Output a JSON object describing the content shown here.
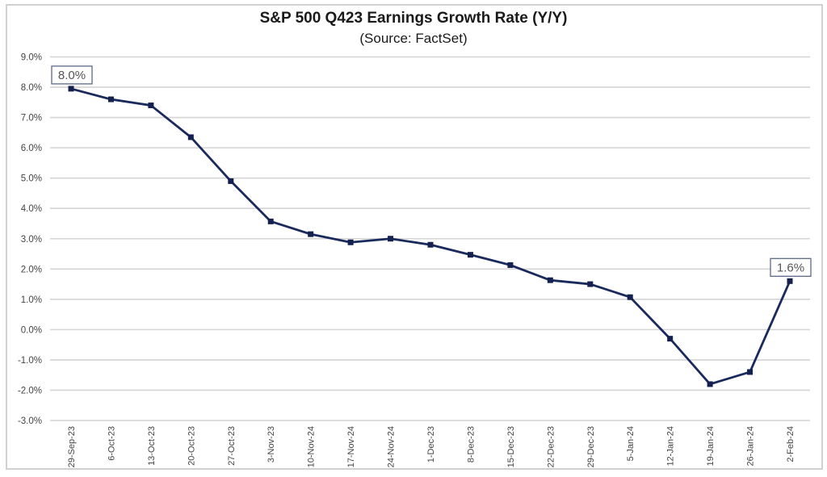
{
  "chart_data": {
    "type": "line",
    "title": "S&P 500 Q423 Earnings Growth Rate (Y/Y)",
    "subtitle": "(Source: FactSet)",
    "xlabel": "",
    "ylabel": "",
    "ylim": [
      -3.0,
      9.0
    ],
    "ytick_step": 1.0,
    "ytick_format": "percent_1dp",
    "grid": "horizontal",
    "legend": "none",
    "categories": [
      "29-Sep-23",
      "6-Oct-23",
      "13-Oct-23",
      "20-Oct-23",
      "27-Oct-23",
      "3-Nov-23",
      "10-Nov-24",
      "17-Nov-24",
      "24-Nov-24",
      "1-Dec-23",
      "8-Dec-23",
      "15-Dec-23",
      "22-Dec-23",
      "29-Dec-23",
      "5-Jan-24",
      "12-Jan-24",
      "19-Jan-24",
      "26-Jan-24",
      "2-Feb-24"
    ],
    "series": [
      {
        "name": "Earnings Growth Rate (Y/Y)",
        "color": "#1b2a5c",
        "values": [
          7.95,
          7.6,
          7.4,
          6.35,
          4.9,
          3.57,
          3.15,
          2.88,
          3.0,
          2.8,
          2.47,
          2.13,
          1.63,
          1.5,
          1.07,
          -0.3,
          -1.8,
          -1.4,
          1.6
        ]
      }
    ],
    "annotations": [
      {
        "category": "29-Sep-23",
        "text": "8.0%"
      },
      {
        "category": "2-Feb-24",
        "text": "1.6%"
      }
    ]
  }
}
